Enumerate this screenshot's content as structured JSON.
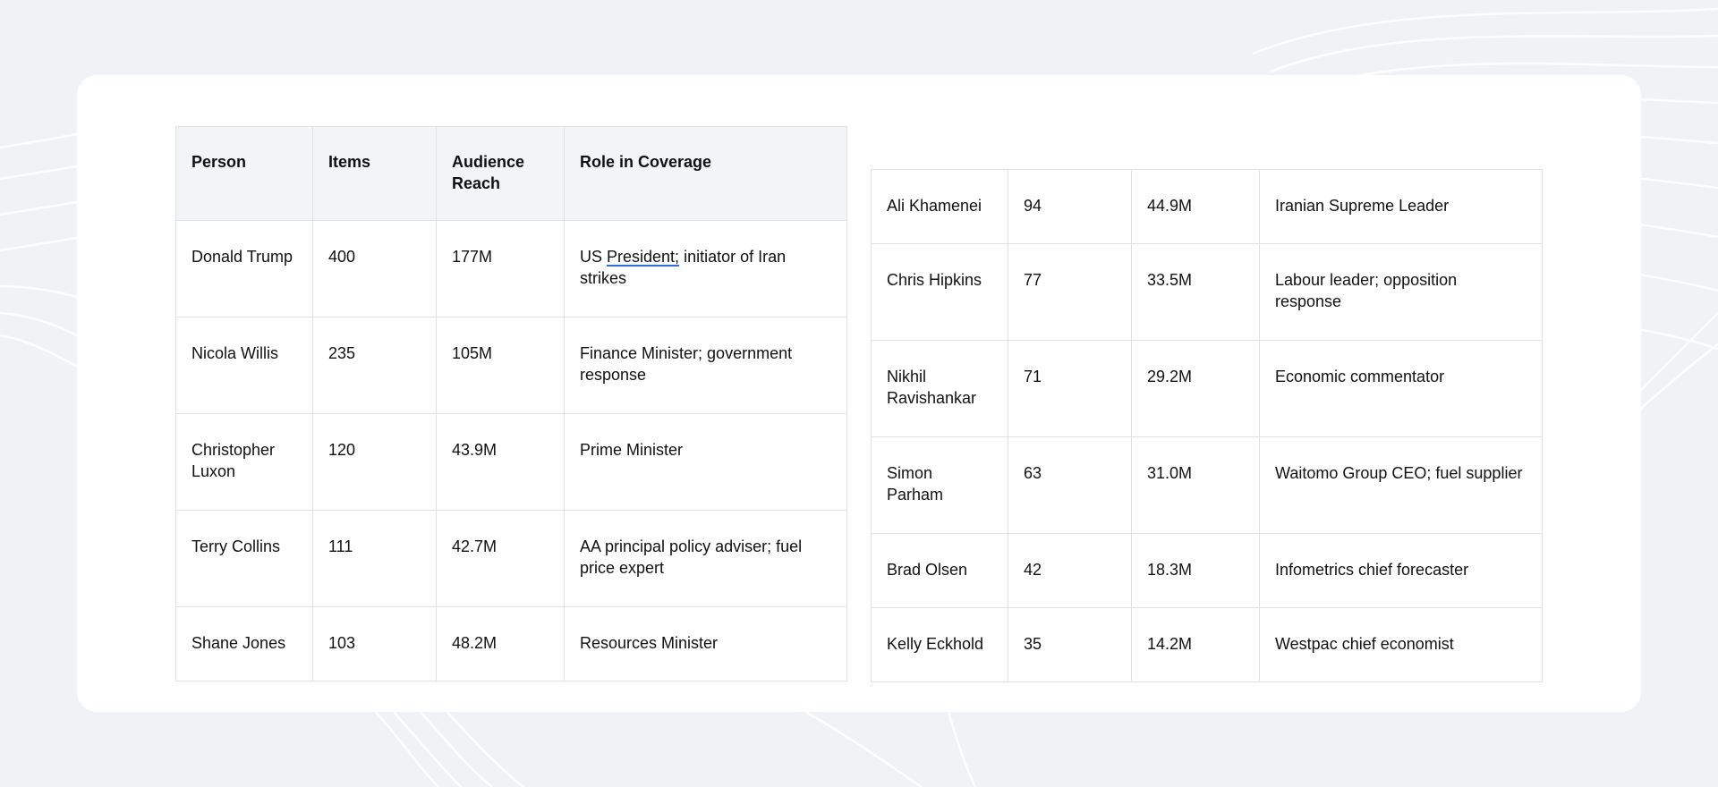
{
  "table_left": {
    "headers": [
      "Person",
      "Items",
      "Audience Reach",
      "Role in Coverage"
    ],
    "rows": [
      {
        "person": "Donald Trump",
        "items": "400",
        "reach": "177M",
        "role_prefix": "US ",
        "role_link": "President;",
        "role_suffix": " initiator of Iran strikes"
      },
      {
        "person": "Nicola Willis",
        "items": "235",
        "reach": "105M",
        "role": "Finance Minister; government response"
      },
      {
        "person": "Christopher Luxon",
        "items": "120",
        "reach": "43.9M",
        "role": "Prime Minister"
      },
      {
        "person": "Terry Collins",
        "items": "111",
        "reach": "42.7M",
        "role": "AA principal policy adviser; fuel price expert"
      },
      {
        "person": "Shane Jones",
        "items": "103",
        "reach": "48.2M",
        "role": "Resources Minister"
      }
    ]
  },
  "table_right": {
    "rows": [
      {
        "person": "Ali Khamenei",
        "items": "94",
        "reach": "44.9M",
        "role": "Iranian Supreme Leader"
      },
      {
        "person": "Chris Hipkins",
        "items": "77",
        "reach": "33.5M",
        "role": "Labour leader; opposition response"
      },
      {
        "person": "Nikhil Ravishankar",
        "items": "71",
        "reach": "29.2M",
        "role": "Economic commentator"
      },
      {
        "person": "Simon Parham",
        "items": "63",
        "reach": "31.0M",
        "role": "Waitomo Group CEO; fuel supplier"
      },
      {
        "person": "Brad Olsen",
        "items": "42",
        "reach": "18.3M",
        "role": "Infometrics chief forecaster"
      },
      {
        "person": "Kelly Eckhold",
        "items": "35",
        "reach": "14.2M",
        "role": "Westpac chief economist"
      }
    ]
  },
  "colors": {
    "background": "#eff3f6",
    "card": "#ffffff",
    "header_fill": "#f2f4f6",
    "border": "#dfe3e7",
    "link_underline": "#2f6fd6"
  }
}
